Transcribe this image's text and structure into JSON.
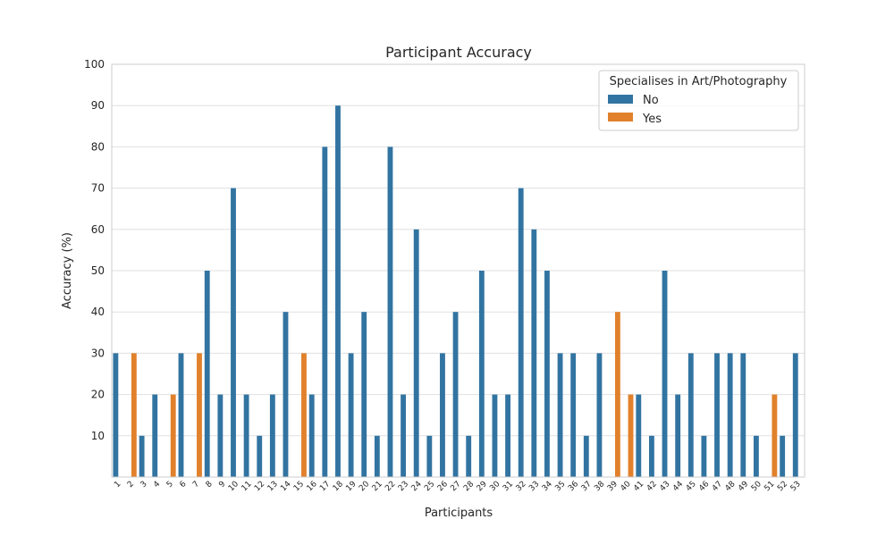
{
  "chart_data": {
    "type": "bar",
    "title": "Participant Accuracy",
    "xlabel": "Participants",
    "ylabel": "Accuracy (%)",
    "ylim": [
      0,
      100
    ],
    "yticks": [
      10,
      20,
      30,
      40,
      50,
      60,
      70,
      80,
      90,
      100
    ],
    "grid": "horizontal",
    "legend": {
      "title": "Specialises in Art/Photography",
      "placement": "top-right"
    },
    "categories": [
      "1",
      "2",
      "3",
      "4",
      "5",
      "6",
      "7",
      "8",
      "9",
      "10",
      "11",
      "12",
      "13",
      "14",
      "15",
      "16",
      "17",
      "18",
      "19",
      "20",
      "21",
      "22",
      "23",
      "24",
      "25",
      "26",
      "27",
      "28",
      "29",
      "30",
      "31",
      "32",
      "33",
      "34",
      "35",
      "36",
      "37",
      "38",
      "39",
      "40",
      "41",
      "42",
      "43",
      "44",
      "45",
      "46",
      "47",
      "48",
      "49",
      "50",
      "51",
      "52",
      "53"
    ],
    "series": [
      {
        "name": "No",
        "color": "#3274a1",
        "values": [
          30,
          null,
          10,
          20,
          null,
          30,
          null,
          50,
          20,
          70,
          20,
          10,
          20,
          40,
          null,
          20,
          80,
          90,
          30,
          40,
          10,
          80,
          20,
          60,
          10,
          30,
          40,
          10,
          50,
          20,
          20,
          70,
          60,
          50,
          30,
          30,
          10,
          30,
          null,
          null,
          20,
          10,
          50,
          20,
          30,
          10,
          30,
          30,
          30,
          10,
          null,
          10,
          30
        ]
      },
      {
        "name": "Yes",
        "color": "#e1812c",
        "values": [
          null,
          30,
          null,
          null,
          20,
          null,
          30,
          null,
          null,
          null,
          null,
          null,
          null,
          null,
          30,
          null,
          null,
          null,
          null,
          null,
          null,
          null,
          null,
          null,
          null,
          null,
          null,
          null,
          null,
          null,
          null,
          null,
          null,
          null,
          null,
          null,
          null,
          null,
          40,
          20,
          null,
          null,
          null,
          null,
          null,
          null,
          null,
          null,
          null,
          null,
          20,
          null,
          null
        ]
      }
    ]
  }
}
